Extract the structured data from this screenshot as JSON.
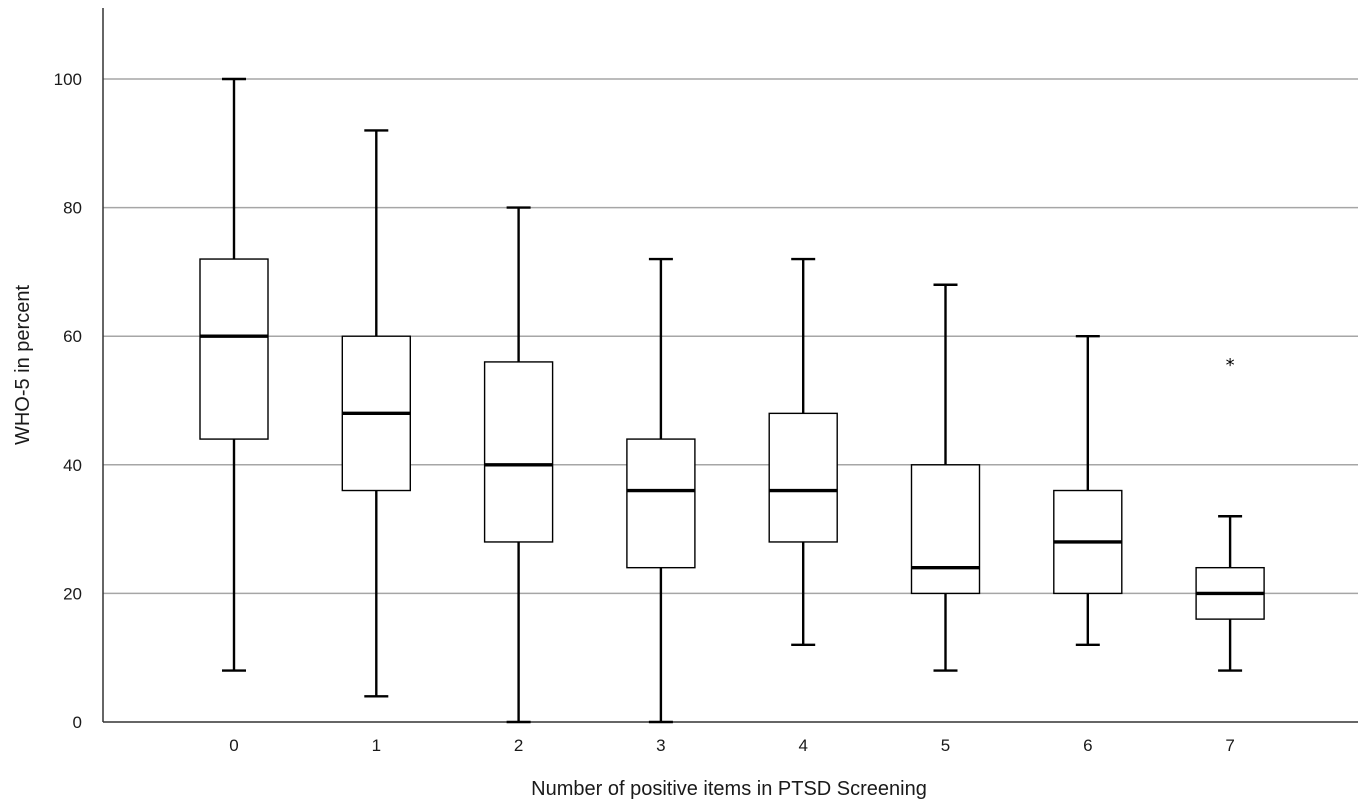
{
  "chart_data": {
    "type": "boxplot",
    "title": "",
    "xlabel": "Number of positive items in PTSD Screening",
    "ylabel": "WHO-5 in percent",
    "ylim": [
      0,
      110
    ],
    "y_ticks": [
      "0",
      "20",
      "40",
      "60",
      "80",
      "100"
    ],
    "grid": "horizontal",
    "categories": [
      "0",
      "1",
      "2",
      "3",
      "4",
      "5",
      "6",
      "7"
    ],
    "boxes": [
      {
        "category": "0",
        "whisker_low": 8,
        "q1": 44,
        "median": 60,
        "q3": 72,
        "whisker_high": 100,
        "outliers": []
      },
      {
        "category": "1",
        "whisker_low": 4,
        "q1": 36,
        "median": 48,
        "q3": 60,
        "whisker_high": 92,
        "outliers": []
      },
      {
        "category": "2",
        "whisker_low": 0,
        "q1": 28,
        "median": 40,
        "q3": 56,
        "whisker_high": 80,
        "outliers": []
      },
      {
        "category": "3",
        "whisker_low": 0,
        "q1": 24,
        "median": 36,
        "q3": 44,
        "whisker_high": 72,
        "outliers": []
      },
      {
        "category": "4",
        "whisker_low": 12,
        "q1": 28,
        "median": 36,
        "q3": 48,
        "whisker_high": 72,
        "outliers": []
      },
      {
        "category": "5",
        "whisker_low": 8,
        "q1": 20,
        "median": 24,
        "q3": 40,
        "whisker_high": 68,
        "outliers": []
      },
      {
        "category": "6",
        "whisker_low": 12,
        "q1": 20,
        "median": 28,
        "q3": 36,
        "whisker_high": 60,
        "outliers": []
      },
      {
        "category": "7",
        "whisker_low": 8,
        "q1": 16,
        "median": 20,
        "q3": 24,
        "whisker_high": 32,
        "outliers": [
          56
        ]
      }
    ],
    "outlier_marker": "*"
  }
}
